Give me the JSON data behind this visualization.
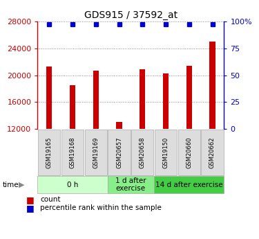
{
  "title": "GDS915 / 37592_at",
  "samples": [
    "GSM19165",
    "GSM19168",
    "GSM19169",
    "GSM20657",
    "GSM20658",
    "GSM19150",
    "GSM20660",
    "GSM20662"
  ],
  "counts": [
    21300,
    18500,
    20700,
    13100,
    20900,
    20300,
    21400,
    25000
  ],
  "bar_color": "#cc0000",
  "dot_color": "#0000cc",
  "ymin": 12000,
  "ymax": 28000,
  "yticks_left": [
    12000,
    16000,
    20000,
    24000,
    28000
  ],
  "yticks_right": [
    0,
    25,
    50,
    75,
    100
  ],
  "bar_width": 0.25,
  "groups": [
    {
      "label": "0 h",
      "start": 0,
      "end": 3,
      "color": "#ccffcc",
      "border": "#aaaaaa"
    },
    {
      "label": "1 d after\nexercise",
      "start": 3,
      "end": 5,
      "color": "#88ee88",
      "border": "#aaaaaa"
    },
    {
      "label": "14 d after exercise",
      "start": 5,
      "end": 8,
      "color": "#44cc44",
      "border": "#aaaaaa"
    }
  ],
  "legend_count_label": "count",
  "legend_pct_label": "percentile rank within the sample",
  "title_fontsize": 10,
  "tick_fontsize": 8,
  "sample_label_fontsize": 6,
  "group_label_fontsize": 7.5
}
